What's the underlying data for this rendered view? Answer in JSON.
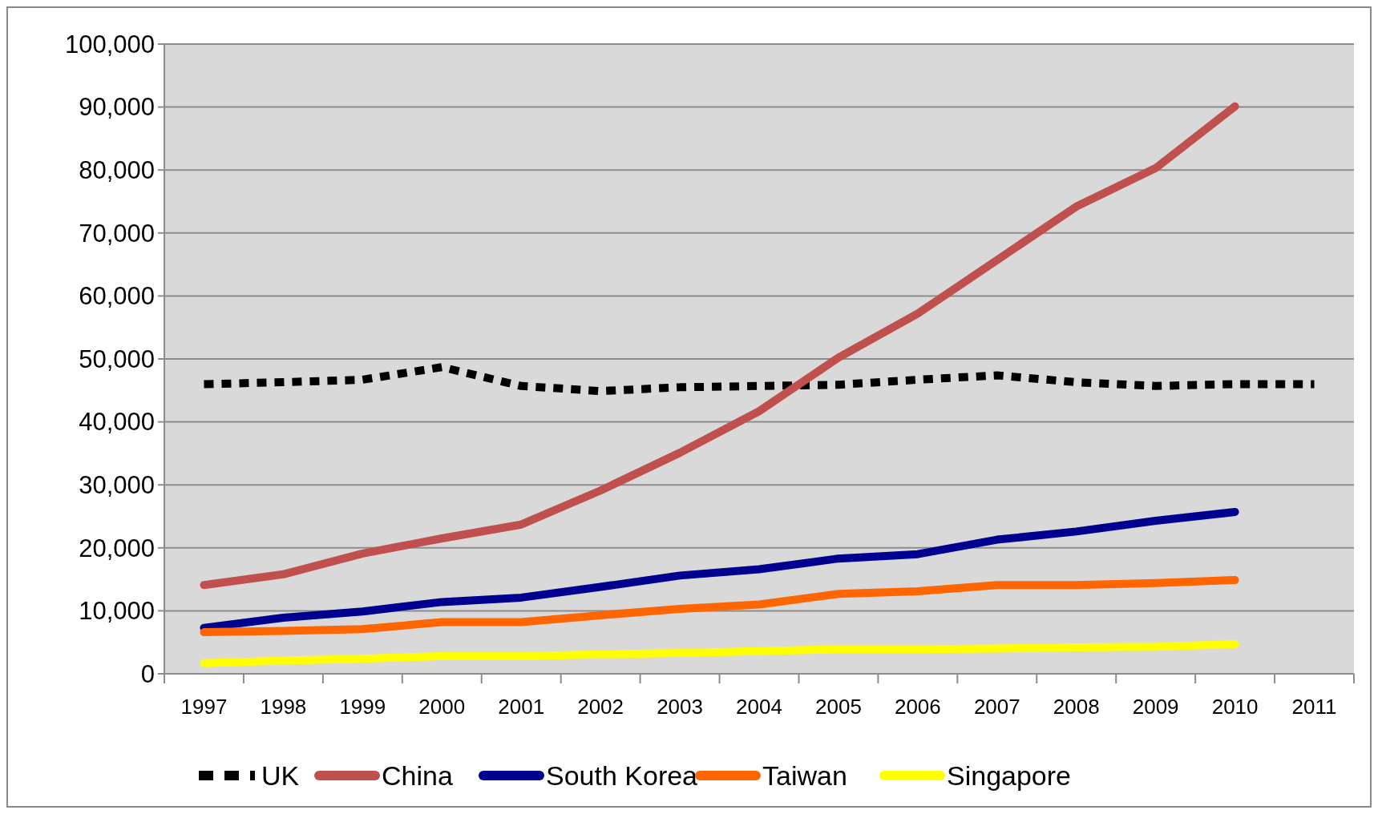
{
  "chart_data": {
    "type": "line",
    "categories": [
      "1997",
      "1998",
      "1999",
      "2000",
      "2001",
      "2002",
      "2003",
      "2004",
      "2005",
      "2006",
      "2007",
      "2008",
      "2009",
      "2010",
      "2011"
    ],
    "series": [
      {
        "name": "UK",
        "color": "#000000",
        "line_style": "dotted",
        "values": [
          46000,
          46300,
          46700,
          48700,
          45700,
          44900,
          45500,
          45700,
          45900,
          46700,
          47400,
          46300,
          45700,
          46000,
          46000
        ]
      },
      {
        "name": "China",
        "color": "#c0504d",
        "values": [
          14100,
          15800,
          19100,
          21500,
          23700,
          29100,
          35100,
          41700,
          50200,
          57200,
          65700,
          74200,
          80300,
          90100,
          null
        ]
      },
      {
        "name": "South Korea",
        "color": "#000090",
        "values": [
          7300,
          8900,
          9900,
          11400,
          12100,
          13800,
          15600,
          16600,
          18300,
          19000,
          21300,
          22600,
          24300,
          25700,
          null
        ]
      },
      {
        "name": "Taiwan",
        "color": "#ff6600",
        "values": [
          6600,
          6800,
          7100,
          8200,
          8200,
          9300,
          10300,
          11000,
          12700,
          13100,
          14100,
          14100,
          14400,
          14900,
          null
        ]
      },
      {
        "name": "Singapore",
        "color": "#ffff00",
        "values": [
          1700,
          2100,
          2400,
          2800,
          2800,
          3100,
          3300,
          3600,
          3900,
          3900,
          4000,
          4200,
          4300,
          4700,
          null
        ]
      }
    ],
    "ylim": [
      0,
      100000
    ],
    "yticks": [
      {
        "value": 0,
        "label": "0"
      },
      {
        "value": 10000,
        "label": "10,000"
      },
      {
        "value": 20000,
        "label": "20,000"
      },
      {
        "value": 30000,
        "label": "30,000"
      },
      {
        "value": 40000,
        "label": "40,000"
      },
      {
        "value": 50000,
        "label": "50,000"
      },
      {
        "value": 60000,
        "label": "60,000"
      },
      {
        "value": 70000,
        "label": "70,000"
      },
      {
        "value": 80000,
        "label": "80,000"
      },
      {
        "value": 90000,
        "label": "90,000"
      },
      {
        "value": 100000,
        "label": "100,000"
      }
    ],
    "grid": "y",
    "legend": "bottom",
    "marker": "none"
  }
}
